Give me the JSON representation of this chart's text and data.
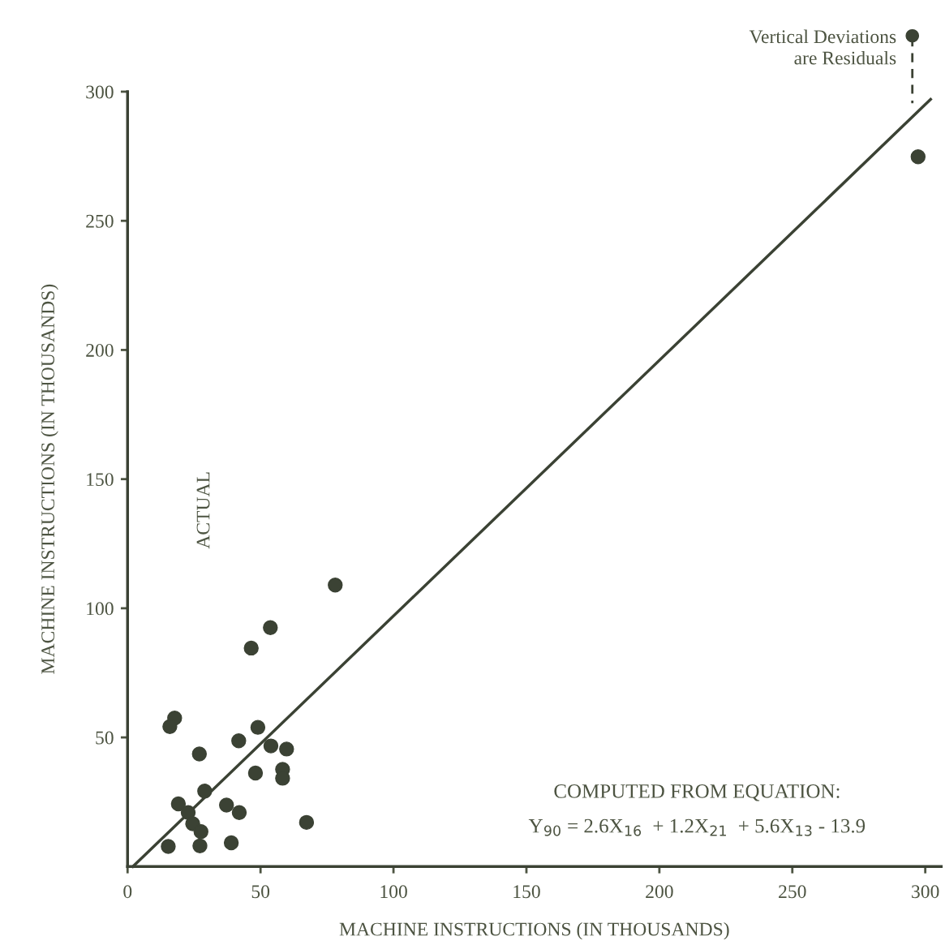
{
  "chart_data": {
    "type": "scatter",
    "xlabel": "MACHINE INSTRUCTIONS (IN THOUSANDS)",
    "ylabel": "MACHINE INSTRUCTIONS (IN THOUSANDS)",
    "annotations": [
      "ACTUAL",
      "COMPUTED FROM EQUATION:",
      "Y$_{90}$ = 2.6X$_{16}$  + 1.2X$_{21}$  + 5.6X$_{13}$ - 13.9",
      "Vertical Deviations\nare Residuals"
    ],
    "series": [
      {
        "color": "#3b4234",
        "marker": "circle",
        "x": [
          78.1,
          53.7,
          46.5,
          17.7,
          15.9,
          49.0,
          41.8,
          53.9,
          59.8,
          27.0,
          48.1,
          58.3,
          58.3,
          29.0,
          19.1,
          37.2,
          22.8,
          42.0,
          24.5,
          67.3,
          27.6,
          15.3,
          27.2,
          39.0,
          297.3
        ],
        "values": [
          109,
          92.5,
          84.6,
          57.5,
          54.2,
          53.9,
          48.7,
          46.7,
          45.5,
          43.6,
          36.2,
          37.6,
          34.2,
          29.2,
          24.3,
          23.8,
          20.9,
          20.9,
          16.6,
          17.1,
          13.5,
          7.8,
          8.0,
          9.2,
          274.8
        ]
      },
      {
        "type": "line",
        "color": "#3b4234",
        "x": [
          2,
          302
        ],
        "values": [
          0,
          297
        ]
      }
    ],
    "xlim": [
      0,
      306
    ],
    "ylim": [
      0,
      300
    ],
    "xticks": [
      0,
      50,
      100,
      150,
      200,
      250,
      300
    ],
    "yticks": [
      50,
      100,
      150,
      200,
      250,
      300
    ],
    "grid": false,
    "legend": false
  }
}
